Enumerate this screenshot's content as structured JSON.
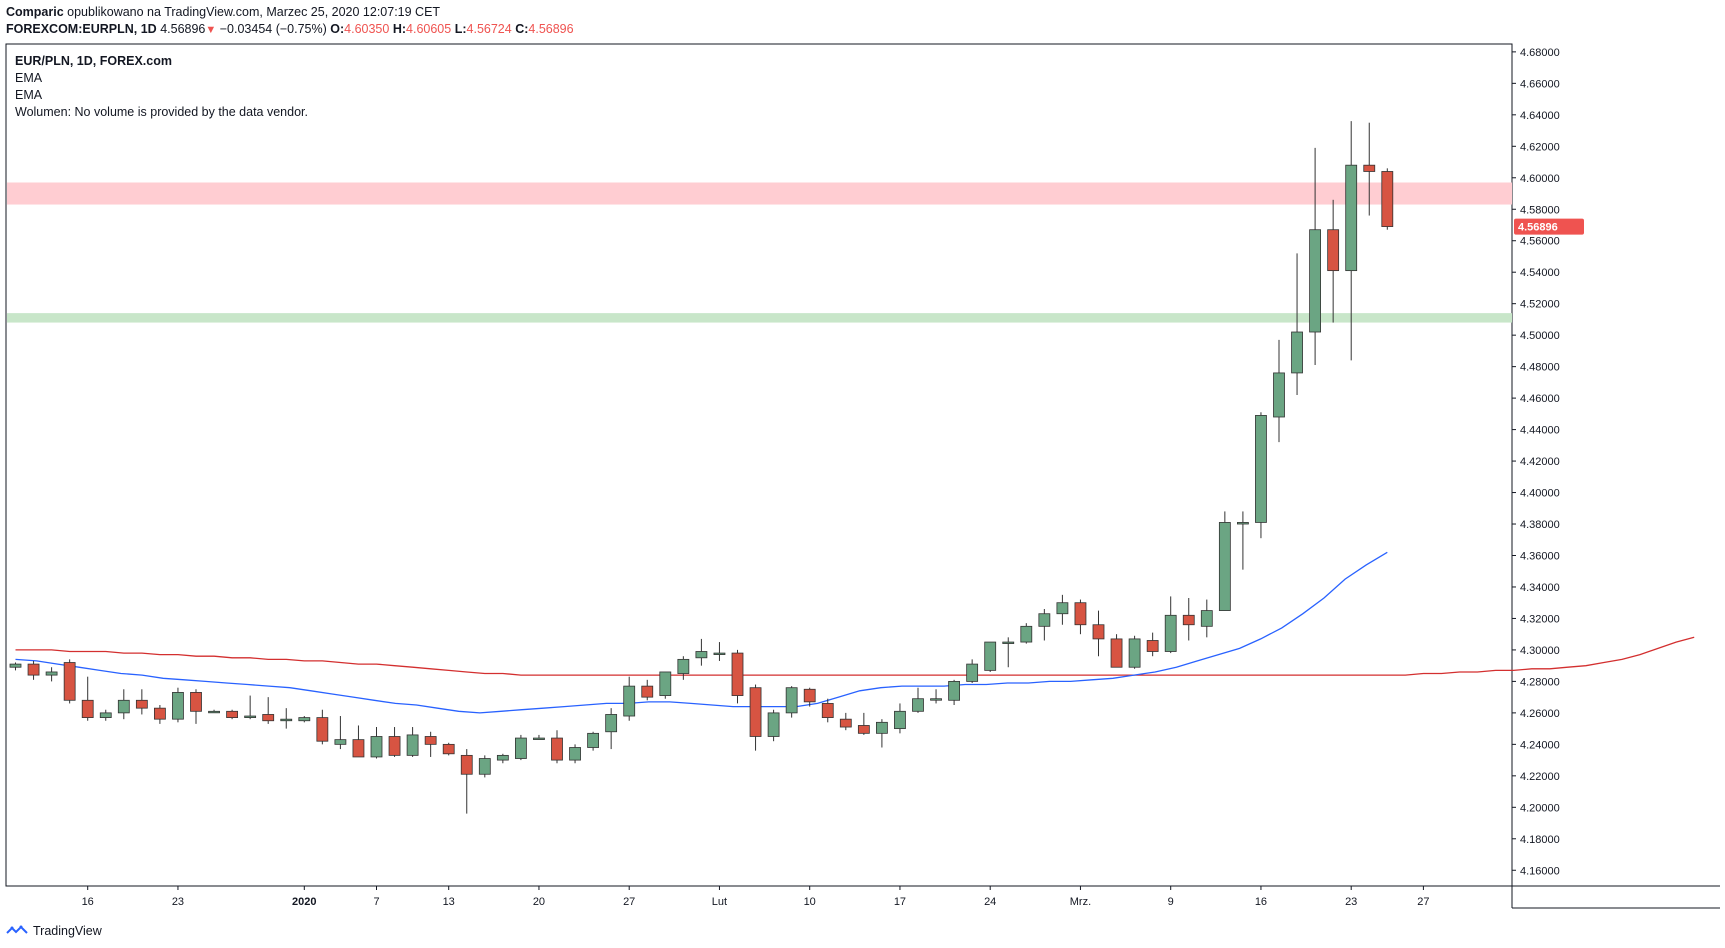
{
  "header": {
    "author": "Comparic",
    "published_text": "opublikowano na TradingView.com, Marzec 25, 2020 12:07:19 CET",
    "symbol": "FOREXCOM:EURPLN, 1D",
    "last": "4.56896",
    "arrow_icon": "down-triangle-icon",
    "change": "−0.03454 (−0.75%)",
    "o_label": "O:",
    "o_value": "4.60350",
    "h_label": "H:",
    "h_value": "4.60605",
    "l_label": "L:",
    "l_value": "4.56724",
    "c_label": "C:",
    "c_value": "4.56896"
  },
  "legend": {
    "title": "EUR/PLN, 1D, FOREX.com",
    "ema1": "EMA",
    "ema2": "EMA",
    "volume": "Wolumen: No volume is provided by the data vendor."
  },
  "price_label": "4.56896",
  "footer": {
    "brand": "TradingView",
    "logo_icon": "tradingview-logo-icon"
  },
  "colors": {
    "up": "#6ba583",
    "down": "#d75442",
    "ema_fast": "#2962ff",
    "ema_slow": "#d32f2f",
    "resistance_zone": "#ffcdd2",
    "support_zone": "#c8e6c9",
    "price_label_bg": "#ef5350"
  },
  "chart_data": {
    "type": "candlestick",
    "symbol": "EUR/PLN",
    "interval": "1D",
    "ylim": [
      4.15,
      4.685
    ],
    "y_ticks": [
      4.16,
      4.18,
      4.2,
      4.22,
      4.24,
      4.26,
      4.28,
      4.3,
      4.32,
      4.34,
      4.36,
      4.38,
      4.4,
      4.42,
      4.44,
      4.46,
      4.48,
      4.5,
      4.52,
      4.54,
      4.56,
      4.58,
      4.6,
      4.62,
      4.64,
      4.66,
      4.68
    ],
    "x_ticks": [
      {
        "label": "16",
        "index": 4,
        "bold": false
      },
      {
        "label": "23",
        "index": 9,
        "bold": false
      },
      {
        "label": "2020",
        "index": 16,
        "bold": true
      },
      {
        "label": "7",
        "index": 20,
        "bold": false
      },
      {
        "label": "13",
        "index": 24,
        "bold": false
      },
      {
        "label": "20",
        "index": 29,
        "bold": false
      },
      {
        "label": "27",
        "index": 34,
        "bold": false
      },
      {
        "label": "Lut",
        "index": 39,
        "bold": false
      },
      {
        "label": "10",
        "index": 44,
        "bold": false
      },
      {
        "label": "17",
        "index": 49,
        "bold": false
      },
      {
        "label": "24",
        "index": 54,
        "bold": false
      },
      {
        "label": "Mrz.",
        "index": 59,
        "bold": false
      },
      {
        "label": "9",
        "index": 64,
        "bold": false
      },
      {
        "label": "16",
        "index": 69,
        "bold": false
      },
      {
        "label": "23",
        "index": 74,
        "bold": false
      },
      {
        "label": "27",
        "index": 78,
        "bold": false
      }
    ],
    "zones": [
      {
        "name": "resistance",
        "from": 4.583,
        "to": 4.597
      },
      {
        "name": "support",
        "from": 4.508,
        "to": 4.514
      }
    ],
    "candles": [
      [
        4.289,
        4.292,
        4.287,
        4.291
      ],
      [
        4.291,
        4.293,
        4.281,
        4.284
      ],
      [
        4.284,
        4.289,
        4.28,
        4.286
      ],
      [
        4.292,
        4.294,
        4.266,
        4.268
      ],
      [
        4.268,
        4.283,
        4.255,
        4.257
      ],
      [
        4.257,
        4.262,
        4.255,
        4.26
      ],
      [
        4.26,
        4.275,
        4.256,
        4.268
      ],
      [
        4.268,
        4.275,
        4.259,
        4.263
      ],
      [
        4.263,
        4.265,
        4.253,
        4.256
      ],
      [
        4.256,
        4.276,
        4.254,
        4.273
      ],
      [
        4.273,
        4.275,
        4.253,
        4.261
      ],
      [
        4.261,
        4.262,
        4.26,
        4.261
      ],
      [
        4.261,
        4.262,
        4.256,
        4.257
      ],
      [
        4.257,
        4.271,
        4.256,
        4.258
      ],
      [
        4.259,
        4.27,
        4.253,
        4.255
      ],
      [
        4.255,
        4.263,
        4.25,
        4.256
      ],
      [
        4.255,
        4.258,
        4.254,
        4.257
      ],
      [
        4.257,
        4.262,
        4.24,
        4.242
      ],
      [
        4.24,
        4.258,
        4.237,
        4.243
      ],
      [
        4.243,
        4.252,
        4.232,
        4.232
      ],
      [
        4.232,
        4.251,
        4.231,
        4.245
      ],
      [
        4.245,
        4.251,
        4.232,
        4.233
      ],
      [
        4.233,
        4.251,
        4.232,
        4.246
      ],
      [
        4.245,
        4.248,
        4.232,
        4.24
      ],
      [
        4.24,
        4.241,
        4.233,
        4.234
      ],
      [
        4.233,
        4.237,
        4.196,
        4.221
      ],
      [
        4.221,
        4.233,
        4.219,
        4.231
      ],
      [
        4.23,
        4.234,
        4.228,
        4.233
      ],
      [
        4.231,
        4.246,
        4.23,
        4.244
      ],
      [
        4.244,
        4.246,
        4.243,
        4.244
      ],
      [
        4.244,
        4.249,
        4.228,
        4.23
      ],
      [
        4.23,
        4.24,
        4.228,
        4.238
      ],
      [
        4.238,
        4.248,
        4.236,
        4.247
      ],
      [
        4.248,
        4.263,
        4.237,
        4.259
      ],
      [
        4.258,
        4.283,
        4.255,
        4.277
      ],
      [
        4.277,
        4.281,
        4.268,
        4.27
      ],
      [
        4.271,
        4.286,
        4.269,
        4.286
      ],
      [
        4.285,
        4.296,
        4.281,
        4.294
      ],
      [
        4.295,
        4.307,
        4.29,
        4.299
      ],
      [
        4.298,
        4.305,
        4.293,
        4.298
      ],
      [
        4.298,
        4.3,
        4.266,
        4.271
      ],
      [
        4.276,
        4.278,
        4.236,
        4.245
      ],
      [
        4.245,
        4.262,
        4.242,
        4.26
      ],
      [
        4.26,
        4.277,
        4.257,
        4.276
      ],
      [
        4.275,
        4.276,
        4.264,
        4.267
      ],
      [
        4.266,
        4.269,
        4.254,
        4.257
      ],
      [
        4.256,
        4.26,
        4.249,
        4.251
      ],
      [
        4.252,
        4.26,
        4.246,
        4.247
      ],
      [
        4.247,
        4.256,
        4.238,
        4.254
      ],
      [
        4.25,
        4.266,
        4.247,
        4.261
      ],
      [
        4.261,
        4.276,
        4.26,
        4.269
      ],
      [
        4.269,
        4.275,
        4.266,
        4.269
      ],
      [
        4.268,
        4.281,
        4.265,
        4.28
      ],
      [
        4.28,
        4.294,
        4.279,
        4.291
      ],
      [
        4.287,
        4.305,
        4.286,
        4.305
      ],
      [
        4.305,
        4.308,
        4.289,
        4.305
      ],
      [
        4.305,
        4.317,
        4.304,
        4.315
      ],
      [
        4.315,
        4.326,
        4.306,
        4.323
      ],
      [
        4.323,
        4.335,
        4.316,
        4.33
      ],
      [
        4.33,
        4.332,
        4.31,
        4.316
      ],
      [
        4.316,
        4.325,
        4.296,
        4.307
      ],
      [
        4.307,
        4.31,
        4.289,
        4.289
      ],
      [
        4.289,
        4.309,
        4.288,
        4.307
      ],
      [
        4.306,
        4.311,
        4.296,
        4.299
      ],
      [
        4.299,
        4.334,
        4.298,
        4.322
      ],
      [
        4.322,
        4.333,
        4.306,
        4.316
      ],
      [
        4.315,
        4.332,
        4.308,
        4.325
      ],
      [
        4.325,
        4.388,
        4.325,
        4.381
      ],
      [
        4.38,
        4.388,
        4.351,
        4.381
      ],
      [
        4.381,
        4.451,
        4.371,
        4.449
      ],
      [
        4.448,
        4.497,
        4.432,
        4.476
      ],
      [
        4.476,
        4.552,
        4.462,
        4.502
      ],
      [
        4.502,
        4.619,
        4.481,
        4.567
      ],
      [
        4.567,
        4.586,
        4.508,
        4.541
      ],
      [
        4.541,
        4.636,
        4.484,
        4.608
      ],
      [
        4.608,
        4.635,
        4.576,
        4.604
      ],
      [
        4.604,
        4.606,
        4.567,
        4.569
      ]
    ],
    "ema_fast": [
      4.294,
      4.293,
      4.291,
      4.289,
      4.287,
      4.285,
      4.284,
      4.282,
      4.281,
      4.28,
      4.279,
      4.278,
      4.277,
      4.276,
      4.274,
      4.272,
      4.27,
      4.268,
      4.266,
      4.265,
      4.263,
      4.261,
      4.26,
      4.261,
      4.262,
      4.263,
      4.264,
      4.265,
      4.266,
      4.266,
      4.267,
      4.267,
      4.266,
      4.265,
      4.264,
      4.264,
      4.264,
      4.264,
      4.266,
      4.27,
      4.274,
      4.276,
      4.277,
      4.277,
      4.277,
      4.278,
      4.278,
      4.279,
      4.279,
      4.28,
      4.28,
      4.281,
      4.282,
      4.284,
      4.286,
      4.289,
      4.293,
      4.297,
      4.301,
      4.307,
      4.314,
      4.323,
      4.333,
      4.345,
      4.354,
      4.362
    ],
    "ema_fast_start_index": 0,
    "ema_slow": [
      4.3,
      4.3,
      4.3,
      4.299,
      4.299,
      4.299,
      4.298,
      4.298,
      4.297,
      4.297,
      4.296,
      4.296,
      4.295,
      4.295,
      4.294,
      4.294,
      4.293,
      4.293,
      4.292,
      4.291,
      4.291,
      4.29,
      4.289,
      4.288,
      4.287,
      4.286,
      4.285,
      4.285,
      4.284,
      4.284,
      4.284,
      4.284,
      4.284,
      4.284,
      4.284,
      4.284,
      4.284,
      4.284,
      4.284,
      4.284,
      4.284,
      4.284,
      4.284,
      4.284,
      4.284,
      4.284,
      4.284,
      4.284,
      4.284,
      4.284,
      4.284,
      4.284,
      4.284,
      4.284,
      4.284,
      4.284,
      4.284,
      4.284,
      4.284,
      4.284,
      4.284,
      4.284,
      4.284,
      4.284,
      4.284,
      4.284,
      4.284,
      4.284,
      4.284,
      4.284,
      4.284,
      4.284,
      4.284,
      4.284,
      4.284,
      4.284,
      4.284,
      4.284,
      4.285,
      4.285,
      4.286,
      4.286,
      4.287,
      4.287,
      4.288,
      4.288,
      4.289,
      4.29,
      4.292,
      4.294,
      4.297,
      4.301,
      4.305,
      4.308
    ],
    "ema_slow_start_index": 0
  }
}
